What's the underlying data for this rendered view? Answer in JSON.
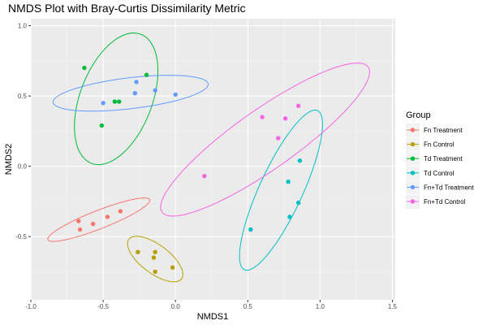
{
  "chart_data": {
    "type": "scatter",
    "title": "NMDS Plot with Bray-Curtis Dissimilarity Metric",
    "xlabel": "NMDS1",
    "ylabel": "NMDS2",
    "xlim": [
      -1.0,
      1.52
    ],
    "ylim": [
      -0.95,
      1.05
    ],
    "x_ticks": [
      -1.0,
      -0.5,
      0.0,
      0.5,
      1.0,
      1.5
    ],
    "x_tick_labels": [
      "-1.0",
      "-0.5",
      "0.0",
      "0.5",
      "1.0",
      "1.5"
    ],
    "y_ticks": [
      -0.5,
      0.0,
      0.5,
      1.0
    ],
    "y_tick_labels": [
      "-0.5",
      "0.0",
      "0.5",
      "1.0"
    ],
    "grid": true,
    "legend_title": "Group",
    "legend_position": "right",
    "series": [
      {
        "name": "Fn Treatment",
        "color": "#F8766D",
        "points": [
          [
            -0.67,
            -0.39
          ],
          [
            -0.66,
            -0.45
          ],
          [
            -0.57,
            -0.41
          ],
          [
            -0.47,
            -0.36
          ],
          [
            -0.38,
            -0.32
          ]
        ],
        "ellipse": {
          "center": [
            -0.53,
            -0.38
          ],
          "semi_axes": [
            0.38,
            0.065
          ],
          "angle_deg": 22
        }
      },
      {
        "name": "Fn Control",
        "color": "#B79F00",
        "points": [
          [
            -0.26,
            -0.61
          ],
          [
            -0.14,
            -0.61
          ],
          [
            -0.15,
            -0.65
          ],
          [
            -0.14,
            -0.75
          ],
          [
            -0.02,
            -0.72
          ]
        ],
        "ellipse": {
          "center": [
            -0.14,
            -0.66
          ],
          "semi_axes": [
            0.23,
            0.1
          ],
          "angle_deg": -38
        }
      },
      {
        "name": "Td Treatment",
        "color": "#00BA38",
        "points": [
          [
            -0.63,
            0.7
          ],
          [
            -0.2,
            0.65
          ],
          [
            -0.42,
            0.46
          ],
          [
            -0.39,
            0.46
          ],
          [
            -0.51,
            0.29
          ]
        ],
        "ellipse": {
          "center": [
            -0.41,
            0.48
          ],
          "semi_axes": [
            0.49,
            0.25
          ],
          "angle_deg": 70
        }
      },
      {
        "name": "Td Control",
        "color": "#00BFC4",
        "points": [
          [
            0.86,
            0.04
          ],
          [
            0.78,
            -0.11
          ],
          [
            0.85,
            -0.26
          ],
          [
            0.79,
            -0.36
          ],
          [
            0.52,
            -0.45
          ]
        ],
        "ellipse": {
          "center": [
            0.73,
            -0.17
          ],
          "semi_axes": [
            0.62,
            0.15
          ],
          "angle_deg": 66
        }
      },
      {
        "name": "Fn+Td Treatment",
        "color": "#619CFF",
        "points": [
          [
            -0.5,
            0.45
          ],
          [
            -0.27,
            0.6
          ],
          [
            -0.28,
            0.52
          ],
          [
            -0.14,
            0.54
          ],
          [
            0.0,
            0.51
          ]
        ],
        "ellipse": {
          "center": [
            -0.31,
            0.52
          ],
          "semi_axes": [
            0.54,
            0.11
          ],
          "angle_deg": 7
        }
      },
      {
        "name": "Fn+Td Control",
        "color": "#F564E3",
        "points": [
          [
            0.2,
            -0.07
          ],
          [
            0.6,
            0.35
          ],
          [
            0.71,
            0.2
          ],
          [
            0.76,
            0.34
          ],
          [
            0.85,
            0.43
          ]
        ],
        "ellipse": {
          "center": [
            0.62,
            0.19
          ],
          "semi_axes": [
            0.88,
            0.21
          ],
          "angle_deg": 36
        }
      }
    ]
  }
}
